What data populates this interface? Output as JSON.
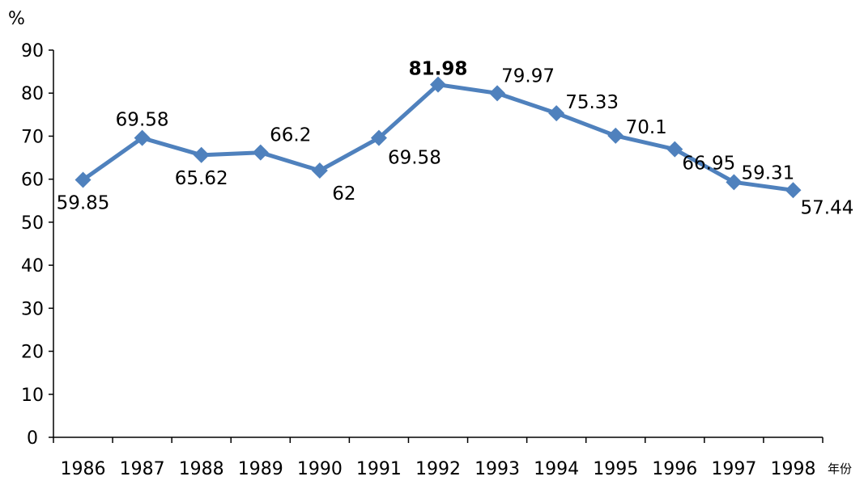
{
  "chart_data": {
    "type": "line",
    "ylabel": "%",
    "xlabel": "年份",
    "ylim": [
      0,
      90
    ],
    "yticks": [
      0,
      10,
      20,
      30,
      40,
      50,
      60,
      70,
      80,
      90
    ],
    "categories": [
      "1986",
      "1987",
      "1988",
      "1989",
      "1990",
      "1991",
      "1992",
      "1993",
      "1994",
      "1995",
      "1996",
      "1997",
      "1998"
    ],
    "series": [
      {
        "values": [
          59.85,
          69.58,
          65.62,
          66.2,
          62,
          69.58,
          81.98,
          79.97,
          75.33,
          70.1,
          66.95,
          59.31,
          57.44
        ],
        "labels": [
          "59.85",
          "69.58",
          "65.62",
          "66.2",
          "62",
          "69.58",
          "81.98",
          "79.97",
          "75.33",
          "70.1",
          "66.95",
          "59.31",
          "57.44"
        ],
        "highlight_index": 6,
        "color": "#4f81bd"
      }
    ],
    "legend": "none",
    "grid": false
  }
}
